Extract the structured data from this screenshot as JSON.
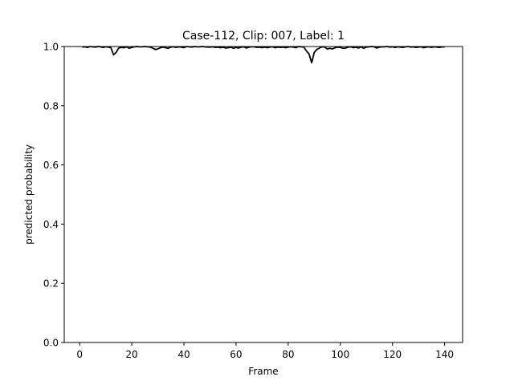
{
  "colors": {
    "line": "#000000",
    "axes": "#000000",
    "background": "#ffffff"
  },
  "chart_data": {
    "type": "line",
    "title": "Case-112, Clip: 007, Label: 1",
    "xlabel": "Frame",
    "ylabel": "predicted probability",
    "xlim": [
      -5.9,
      146.9
    ],
    "ylim": [
      0.0,
      1.0
    ],
    "xticks": [
      0,
      20,
      40,
      60,
      80,
      100,
      120,
      140
    ],
    "xtick_labels": [
      "0",
      "20",
      "40",
      "60",
      "80",
      "100",
      "120",
      "140"
    ],
    "yticks": [
      0.0,
      0.2,
      0.4,
      0.6,
      0.8,
      1.0
    ],
    "ytick_labels": [
      "0.0",
      "0.2",
      "0.4",
      "0.6",
      "0.8",
      "1.0"
    ],
    "grid": false,
    "legend": false,
    "series": [
      {
        "color": "#000000",
        "x": [
          1,
          2,
          3,
          4,
          5,
          6,
          7,
          8,
          9,
          10,
          11,
          12,
          13,
          14,
          15,
          16,
          17,
          18,
          19,
          20,
          21,
          22,
          23,
          24,
          25,
          26,
          27,
          28,
          29,
          30,
          31,
          32,
          33,
          34,
          35,
          36,
          37,
          38,
          39,
          40,
          41,
          42,
          43,
          44,
          45,
          46,
          47,
          48,
          49,
          50,
          51,
          52,
          53,
          54,
          55,
          56,
          57,
          58,
          59,
          60,
          61,
          62,
          63,
          64,
          65,
          66,
          67,
          68,
          69,
          70,
          71,
          72,
          73,
          74,
          75,
          76,
          77,
          78,
          79,
          80,
          81,
          82,
          83,
          84,
          85,
          86,
          87,
          88,
          89,
          90,
          91,
          92,
          93,
          94,
          95,
          96,
          97,
          98,
          99,
          100,
          101,
          102,
          103,
          104,
          105,
          106,
          107,
          108,
          109,
          110,
          111,
          112,
          113,
          114,
          115,
          116,
          117,
          118,
          119,
          120,
          121,
          122,
          123,
          124,
          125,
          126,
          127,
          128,
          129,
          130,
          131,
          132,
          133,
          134,
          135,
          136,
          137,
          138,
          139,
          140
        ],
        "y": [
          0.998,
          0.999,
          0.997,
          1.0,
          0.999,
          0.998,
          1.0,
          0.999,
          0.997,
          0.999,
          0.998,
          0.996,
          0.972,
          0.98,
          0.995,
          0.997,
          0.996,
          0.999,
          0.994,
          0.997,
          0.999,
          1.0,
          0.999,
          0.999,
          1.0,
          0.999,
          0.998,
          0.995,
          0.99,
          0.992,
          0.996,
          0.998,
          0.996,
          0.994,
          0.998,
          0.999,
          0.997,
          0.999,
          0.998,
          0.996,
          1.0,
          0.999,
          0.998,
          1.0,
          0.999,
          0.999,
          1.0,
          0.999,
          0.998,
          0.998,
          0.999,
          0.997,
          0.998,
          0.996,
          0.998,
          0.995,
          0.996,
          0.998,
          0.994,
          0.997,
          0.995,
          0.998,
          0.999,
          0.995,
          0.998,
          0.999,
          0.999,
          0.997,
          0.998,
          0.996,
          0.998,
          0.996,
          0.998,
          0.999,
          0.996,
          0.998,
          0.997,
          0.998,
          0.996,
          0.998,
          0.999,
          0.998,
          0.996,
          1.0,
          0.999,
          0.998,
          0.985,
          0.975,
          0.945,
          0.98,
          0.99,
          0.995,
          0.999,
          0.998,
          0.992,
          0.994,
          0.992,
          0.996,
          0.998,
          0.997,
          0.994,
          0.995,
          0.998,
          0.999,
          0.996,
          0.998,
          0.995,
          0.999,
          0.994,
          0.998,
          0.999,
          1.0,
          0.999,
          0.995,
          0.998,
          0.999,
          0.999,
          1.0,
          0.998,
          0.999,
          0.997,
          0.999,
          0.998,
          0.997,
          0.999,
          1.0,
          0.998,
          0.999,
          0.997,
          0.998,
          0.999,
          0.996,
          0.998,
          0.999,
          0.997,
          0.999,
          0.998,
          0.997,
          0.999,
          0.998
        ]
      }
    ]
  }
}
